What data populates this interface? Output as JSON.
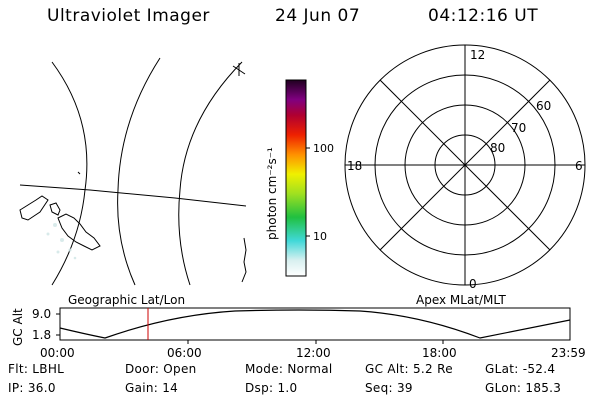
{
  "header": {
    "instrument": "Ultraviolet Imager",
    "date": "24 Jun 07",
    "time": "04:12:16 UT"
  },
  "colorbar": {
    "label": "photon cm⁻²s⁻¹",
    "ticks": [
      "100",
      "10"
    ]
  },
  "polar_plot": {
    "clock_labels": [
      "12",
      "18",
      "6",
      "0"
    ],
    "lat_labels": [
      "60",
      "70",
      "80"
    ]
  },
  "altitude_plot": {
    "ylabel": "GC Alt",
    "yticks": [
      "9.0",
      "1.8"
    ],
    "left_label": "Geographic Lat/Lon",
    "right_label": "Apex MLat/MLT",
    "xticks": [
      "00:00",
      "06:00",
      "12:00",
      "18:00",
      "23:59"
    ],
    "marker_time": "04:12",
    "marker_color": "#cc0000"
  },
  "info": {
    "row1": {
      "flt": "Flt: LBHL",
      "door": "Door: Open",
      "mode": "Mode: Normal",
      "gcalt": "GC Alt: 5.2 Re",
      "glat": "GLat: -52.4"
    },
    "row2": {
      "ip": "IP: 36.0",
      "gain": "Gain: 14",
      "dsp": "Dsp:    1.0",
      "seq": "Seq: 39",
      "glon": "GLon: 185.3"
    }
  }
}
